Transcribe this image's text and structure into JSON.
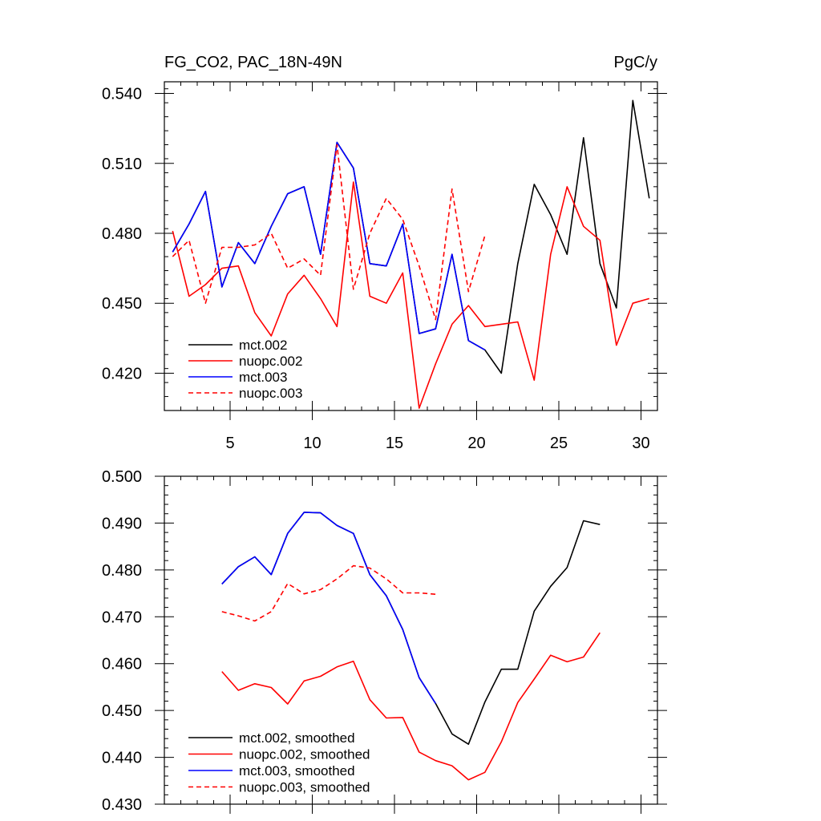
{
  "chart_data": [
    {
      "type": "line",
      "title_left": "FG_CO2, PAC_18N-49N",
      "title_right": "PgC/y",
      "xlabel": "",
      "ylabel": "",
      "xlim": [
        1,
        31
      ],
      "ylim": [
        0.404,
        0.545
      ],
      "xticks": [
        5,
        10,
        15,
        20,
        25,
        30
      ],
      "yticks": [
        0.42,
        0.45,
        0.48,
        0.51,
        0.54
      ],
      "ytick_labels": [
        "0.420",
        "0.450",
        "0.480",
        "0.510",
        "0.540"
      ],
      "xtick_labels": [
        "5",
        "10",
        "15",
        "20",
        "25",
        "30"
      ],
      "legend_position": "bottom-left",
      "series": [
        {
          "name": "mct.002",
          "color": "#000000",
          "dash": "solid",
          "x": [
            1.5,
            2.5,
            3.5,
            4.5,
            5.5,
            6.5,
            7.5,
            8.5,
            9.5,
            10.5,
            11.5,
            12.5,
            13.5,
            14.5,
            15.5,
            16.5,
            17.5,
            18.5,
            19.5,
            20.5,
            21.5,
            22.5,
            23.5,
            24.5,
            25.5,
            26.5,
            27.5,
            28.5,
            29.5,
            30.5
          ],
          "values": [
            0.472,
            0.484,
            0.498,
            0.457,
            0.476,
            0.467,
            0.483,
            0.497,
            0.5,
            0.471,
            0.519,
            0.508,
            0.467,
            0.466,
            0.484,
            0.437,
            0.439,
            0.471,
            0.434,
            0.43,
            0.42,
            0.467,
            0.501,
            0.488,
            0.471,
            0.521,
            0.467,
            0.448,
            0.537,
            0.495
          ]
        },
        {
          "name": "nuopc.002",
          "color": "#ff0000",
          "dash": "solid",
          "x": [
            1.5,
            2.5,
            3.5,
            4.5,
            5.5,
            6.5,
            7.5,
            8.5,
            9.5,
            10.5,
            11.5,
            12.5,
            13.5,
            14.5,
            15.5,
            16.5,
            17.5,
            18.5,
            19.5,
            20.5,
            21.5,
            22.5,
            23.5,
            24.5,
            25.5,
            26.5,
            27.5,
            28.5,
            29.5,
            30.5
          ],
          "values": [
            0.481,
            0.453,
            0.458,
            0.465,
            0.466,
            0.446,
            0.436,
            0.454,
            0.462,
            0.452,
            0.44,
            0.502,
            0.453,
            0.45,
            0.463,
            0.405,
            0.424,
            0.441,
            0.449,
            0.44,
            0.441,
            0.442,
            0.417,
            0.471,
            0.5,
            0.483,
            0.477,
            0.432,
            0.45,
            0.452
          ]
        },
        {
          "name": "mct.003",
          "color": "#0000ff",
          "dash": "solid",
          "x": [
            1.5,
            2.5,
            3.5,
            4.5,
            5.5,
            6.5,
            7.5,
            8.5,
            9.5,
            10.5,
            11.5,
            12.5,
            13.5,
            14.5,
            15.5,
            16.5,
            17.5,
            18.5,
            19.5,
            20.5
          ],
          "values": [
            0.472,
            0.484,
            0.498,
            0.457,
            0.476,
            0.467,
            0.483,
            0.497,
            0.5,
            0.471,
            0.519,
            0.508,
            0.467,
            0.466,
            0.484,
            0.437,
            0.439,
            0.471,
            0.434,
            0.43
          ]
        },
        {
          "name": "nuopc.003",
          "color": "#ff0000",
          "dash": "dashed",
          "x": [
            1.5,
            2.5,
            3.5,
            4.5,
            5.5,
            6.5,
            7.5,
            8.5,
            9.5,
            10.5,
            11.5,
            12.5,
            13.5,
            14.5,
            15.5,
            16.5,
            17.5,
            18.5,
            19.5,
            20.5
          ],
          "values": [
            0.47,
            0.477,
            0.45,
            0.474,
            0.474,
            0.475,
            0.48,
            0.465,
            0.469,
            0.462,
            0.518,
            0.456,
            0.48,
            0.495,
            0.486,
            0.466,
            0.443,
            0.499,
            0.455,
            0.479
          ]
        }
      ]
    },
    {
      "type": "line",
      "title_left": "",
      "title_right": "",
      "xlabel": "",
      "ylabel": "",
      "xlim": [
        1,
        31
      ],
      "ylim": [
        0.43,
        0.5
      ],
      "xticks": [
        5,
        10,
        15,
        20,
        25,
        30
      ],
      "yticks": [
        0.43,
        0.44,
        0.45,
        0.46,
        0.47,
        0.48,
        0.49,
        0.5
      ],
      "ytick_labels": [
        "0.430",
        "0.440",
        "0.450",
        "0.460",
        "0.470",
        "0.480",
        "0.490",
        "0.500"
      ],
      "legend_position": "bottom-left",
      "series": [
        {
          "name": "mct.002, smoothed",
          "color": "#000000",
          "dash": "solid",
          "x": [
            4.5,
            5.5,
            6.5,
            7.5,
            8.5,
            9.5,
            10.5,
            11.5,
            12.5,
            13.5,
            14.5,
            15.5,
            16.5,
            17.5,
            18.5,
            19.5,
            20.5,
            21.5,
            22.5,
            23.5,
            24.5,
            25.5,
            26.5,
            27.5
          ],
          "values": [
            0.477,
            0.4807,
            0.4828,
            0.479,
            0.4878,
            0.4923,
            0.4922,
            0.4895,
            0.4878,
            0.479,
            0.4745,
            0.4673,
            0.457,
            0.4515,
            0.445,
            0.4428,
            0.4518,
            0.4588,
            0.4588,
            0.4712,
            0.4765,
            0.4805,
            0.4905,
            0.4897
          ]
        },
        {
          "name": "nuopc.002, smoothed",
          "color": "#ff0000",
          "dash": "solid",
          "x": [
            4.5,
            5.5,
            6.5,
            7.5,
            8.5,
            9.5,
            10.5,
            11.5,
            12.5,
            13.5,
            14.5,
            15.5,
            16.5,
            17.5,
            18.5,
            19.5,
            20.5,
            21.5,
            22.5,
            23.5,
            24.5,
            25.5,
            26.5,
            27.5
          ],
          "values": [
            0.4583,
            0.4543,
            0.4557,
            0.4549,
            0.4514,
            0.4563,
            0.4573,
            0.4593,
            0.4605,
            0.4523,
            0.4484,
            0.4485,
            0.4411,
            0.4393,
            0.4382,
            0.4352,
            0.4368,
            0.4433,
            0.4517,
            0.4567,
            0.4618,
            0.4604,
            0.4614,
            0.4666
          ]
        },
        {
          "name": "mct.003, smoothed",
          "color": "#0000ff",
          "dash": "solid",
          "x": [
            4.5,
            5.5,
            6.5,
            7.5,
            8.5,
            9.5,
            10.5,
            11.5,
            12.5,
            13.5,
            14.5,
            15.5,
            16.5,
            17.5
          ],
          "values": [
            0.477,
            0.4807,
            0.4828,
            0.479,
            0.4878,
            0.4923,
            0.4922,
            0.4895,
            0.4878,
            0.479,
            0.4745,
            0.4673,
            0.457,
            0.4515
          ]
        },
        {
          "name": "nuopc.003, smoothed",
          "color": "#ff0000",
          "dash": "dashed",
          "x": [
            4.5,
            5.5,
            6.5,
            7.5,
            8.5,
            9.5,
            10.5,
            11.5,
            12.5,
            13.5,
            14.5,
            15.5,
            16.5,
            17.5
          ],
          "values": [
            0.4711,
            0.4702,
            0.4691,
            0.4711,
            0.4771,
            0.4749,
            0.4758,
            0.4781,
            0.4809,
            0.4804,
            0.4781,
            0.4751,
            0.4751,
            0.4748
          ]
        }
      ]
    }
  ]
}
